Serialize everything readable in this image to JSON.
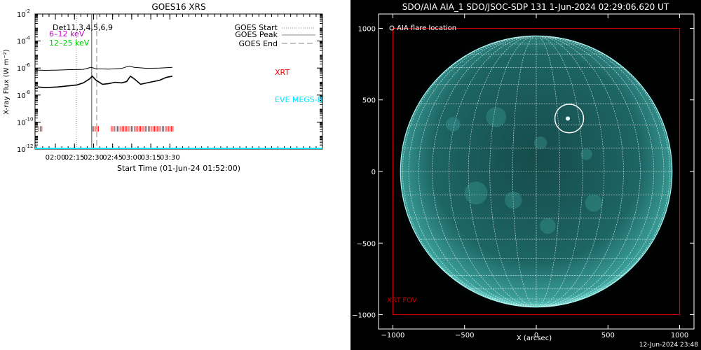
{
  "chart_data": [
    {
      "type": "line",
      "title": "GOES16 XRS",
      "xlabel": "Start Time (01-Jun-24 01:52:00)",
      "ylabel": "X-ray Flux (W m⁻²)",
      "ylim_log10": [
        -12,
        -2
      ],
      "y_ticks": [
        {
          "label": "10",
          "exp": "-2",
          "value": -2
        },
        {
          "label": "10",
          "exp": "-4",
          "value": -4
        },
        {
          "label": "10",
          "exp": "-6",
          "value": -6
        },
        {
          "label": "10",
          "exp": "-8",
          "value": -8
        },
        {
          "label": "10",
          "exp": "-10",
          "value": -10
        },
        {
          "label": "10",
          "exp": "-12",
          "value": -12
        }
      ],
      "xlim_min": [
        -8,
        218
      ],
      "x_ticks": [
        {
          "label": "02:00",
          "min": 8
        },
        {
          "label": "02:15",
          "min": 23
        },
        {
          "label": "02:30",
          "min": 38
        },
        {
          "label": "02:45",
          "min": 53
        },
        {
          "label": "03:00",
          "min": 68
        },
        {
          "label": "03:15",
          "min": 83
        },
        {
          "label": "03:30",
          "min": 98
        }
      ],
      "x_ticks_min": [
        0,
        8,
        23,
        38,
        53,
        68,
        83,
        98
      ],
      "legend": {
        "dets": "Det11,3,4,5,6,9",
        "low": "6–12 keV",
        "high": "12–25 keV",
        "start": "GOES Start",
        "peak": "GOES Peak",
        "end": "GOES End"
      },
      "labels": {
        "xrt": "XRT",
        "eve": "EVE MEGS-B"
      },
      "events_min": {
        "start": 24.5,
        "peak": 36.5,
        "end": 40.5
      },
      "series": [
        {
          "name": "long",
          "points": [
            [
              -6,
              -6.15
            ],
            [
              0,
              -6.17
            ],
            [
              10,
              -6.15
            ],
            [
              20,
              -6.12
            ],
            [
              30,
              -6.1
            ],
            [
              36,
              -5.95
            ],
            [
              40,
              -6.05
            ],
            [
              50,
              -6.08
            ],
            [
              60,
              -6.03
            ],
            [
              66,
              -5.85
            ],
            [
              70,
              -5.95
            ],
            [
              80,
              -6.02
            ],
            [
              90,
              -6.0
            ],
            [
              100,
              -5.95
            ]
          ]
        },
        {
          "name": "short",
          "points": [
            [
              -6,
              -7.4
            ],
            [
              0,
              -7.45
            ],
            [
              10,
              -7.4
            ],
            [
              20,
              -7.3
            ],
            [
              25,
              -7.25
            ],
            [
              30,
              -7.1
            ],
            [
              35,
              -6.8
            ],
            [
              37,
              -6.6
            ],
            [
              40,
              -6.9
            ],
            [
              45,
              -7.2
            ],
            [
              50,
              -7.15
            ],
            [
              55,
              -7.05
            ],
            [
              60,
              -7.1
            ],
            [
              64,
              -7.0
            ],
            [
              67,
              -6.6
            ],
            [
              70,
              -6.8
            ],
            [
              75,
              -7.2
            ],
            [
              80,
              -7.1
            ],
            [
              90,
              -6.9
            ],
            [
              95,
              -6.7
            ],
            [
              100,
              -6.6
            ]
          ]
        }
      ],
      "xrt_segments_min": [
        [
          -5,
          -2
        ],
        [
          37,
          42
        ],
        [
          52,
          101
        ]
      ],
      "colors": {
        "xrt": "#ff0000",
        "eve": "#00e5ff",
        "low": "#cc00cc",
        "high": "#00cc00"
      }
    },
    {
      "type": "image",
      "title": "SDO/AIA AIA_1 SDO/JSOC-SDP 131  1-Jun-2024 02:29:06.620 UT",
      "xlabel": "X (arcsec)",
      "xlim": [
        -1100,
        1100
      ],
      "ylim": [
        -1100,
        1100
      ],
      "x_ticks": [
        "−1000",
        "−500",
        "0",
        "500",
        "1000"
      ],
      "y_ticks": [
        "−1000",
        "−500",
        "0",
        "500",
        "1000"
      ],
      "tick_values": [
        -1000,
        -500,
        0,
        500,
        1000
      ],
      "disk_radius_arcsec": 947,
      "legend": "AIA flare location",
      "flare_arcsec": [
        230,
        370
      ],
      "fov_label": "XRT FOV",
      "fov_arcsec": [
        -1000,
        -1000,
        1000,
        1000
      ],
      "colors": {
        "disk": "#1f6b6b",
        "fov": "#cc0000",
        "limb": "#a8f7f2"
      }
    }
  ],
  "footer": {
    "timestamp": "12-Jun-2024 23:48"
  }
}
